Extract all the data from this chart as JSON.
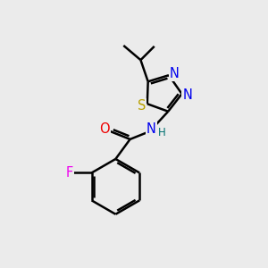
{
  "background_color": "#ebebeb",
  "bond_color": "#000000",
  "bond_width": 1.8,
  "atom_colors": {
    "S": "#b8a000",
    "N": "#0000ee",
    "O": "#ee0000",
    "F": "#ee00ee",
    "H": "#007070",
    "C": "#000000"
  },
  "font_size_atom": 10.5,
  "font_size_small": 8.5,
  "xlim": [
    0,
    10
  ],
  "ylim": [
    0,
    10
  ]
}
